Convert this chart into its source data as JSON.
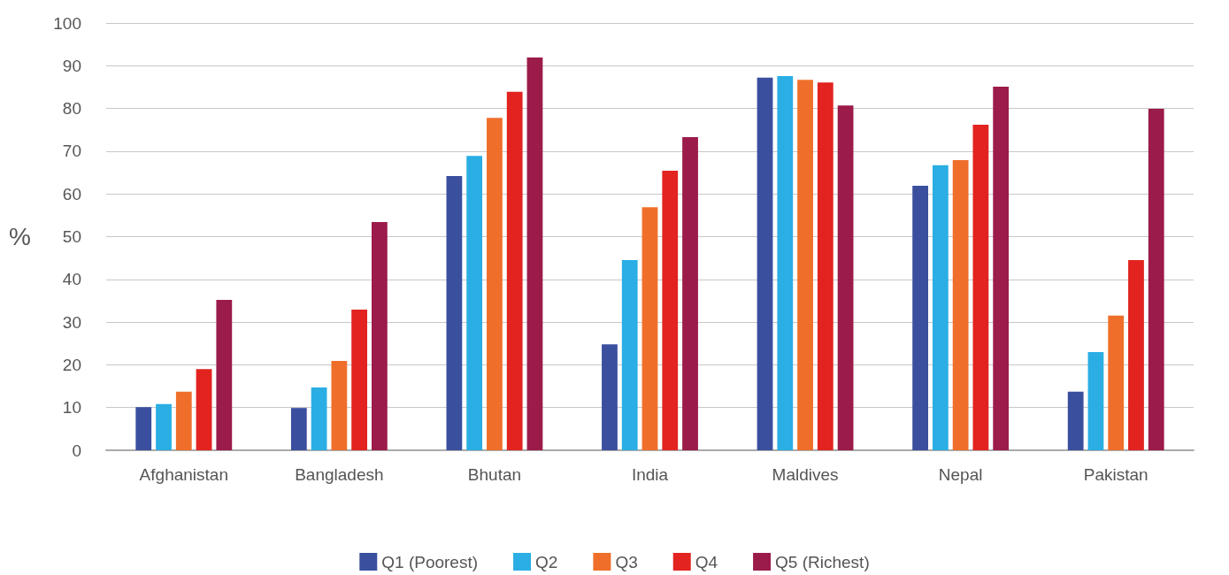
{
  "chart_data": {
    "type": "bar",
    "ylabel": "%",
    "categories": [
      "Afghanistan",
      "Bangladesh",
      "Bhutan",
      "India",
      "Maldives",
      "Nepal",
      "Pakistan"
    ],
    "series": [
      {
        "name": "Q1 (Poorest)",
        "color": "#3a4f9e",
        "values": [
          10.1,
          9.9,
          64.2,
          24.8,
          87.2,
          61.9,
          13.7
        ]
      },
      {
        "name": "Q2",
        "color": "#2aaee4",
        "values": [
          10.8,
          14.7,
          68.9,
          44.5,
          87.6,
          66.7,
          23.0
        ]
      },
      {
        "name": "Q3",
        "color": "#ef6f2a",
        "values": [
          13.7,
          20.9,
          77.8,
          56.9,
          86.7,
          67.9,
          31.5
        ]
      },
      {
        "name": "Q4",
        "color": "#e2231f",
        "values": [
          19.0,
          32.9,
          83.9,
          65.4,
          86.1,
          76.2,
          44.5
        ]
      },
      {
        "name": "Q5 (Richest)",
        "color": "#9b1b4a",
        "values": [
          35.2,
          53.4,
          91.9,
          73.3,
          80.7,
          85.1,
          79.9
        ]
      }
    ],
    "ylim": [
      0,
      100
    ],
    "yticks": [
      0,
      10,
      20,
      30,
      40,
      50,
      60,
      70,
      80,
      90,
      100
    ],
    "grid": "y",
    "legend": "bottom"
  }
}
